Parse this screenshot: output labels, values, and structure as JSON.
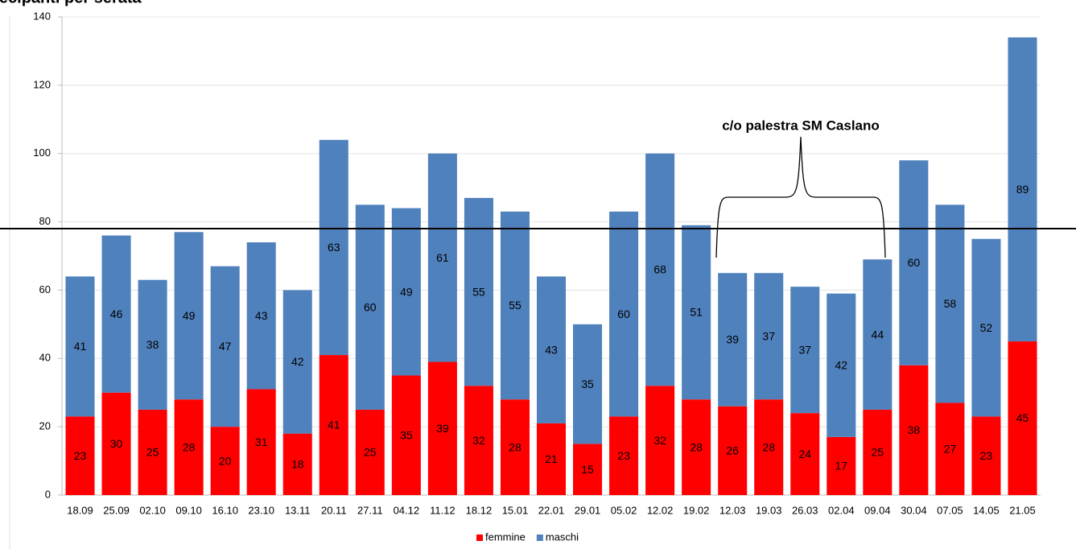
{
  "chart_data": {
    "type": "stacked_bar",
    "title": "Partecipanti per serata",
    "annotation": "c/o palestra SM Caslano",
    "categories": [
      "18.09",
      "25.09",
      "02.10",
      "09.10",
      "16.10",
      "23.10",
      "13.11",
      "20.11",
      "27.11",
      "04.12",
      "11.12",
      "18.12",
      "15.01",
      "22.01",
      "29.01",
      "05.02",
      "12.02",
      "19.02",
      "12.03",
      "19.03",
      "26.03",
      "02.04",
      "09.04",
      "30.04",
      "07.05",
      "14.05",
      "21.05"
    ],
    "series": [
      {
        "name": "femmine",
        "color": "#ff0000",
        "values": [
          23,
          30,
          25,
          28,
          20,
          31,
          18,
          41,
          25,
          35,
          39,
          32,
          28,
          21,
          15,
          23,
          32,
          28,
          26,
          28,
          24,
          17,
          25,
          38,
          27,
          23,
          45
        ]
      },
      {
        "name": "maschi",
        "color": "#4f81bd",
        "values": [
          41,
          46,
          38,
          49,
          47,
          43,
          42,
          63,
          60,
          49,
          61,
          55,
          55,
          43,
          35,
          60,
          68,
          51,
          39,
          37,
          37,
          42,
          44,
          60,
          58,
          52,
          89
        ]
      }
    ],
    "reference_line": 78,
    "ylim": [
      0,
      140
    ],
    "yticks": [
      0,
      20,
      40,
      60,
      80,
      100,
      120,
      140
    ],
    "grid": true,
    "legend": "bottom"
  }
}
